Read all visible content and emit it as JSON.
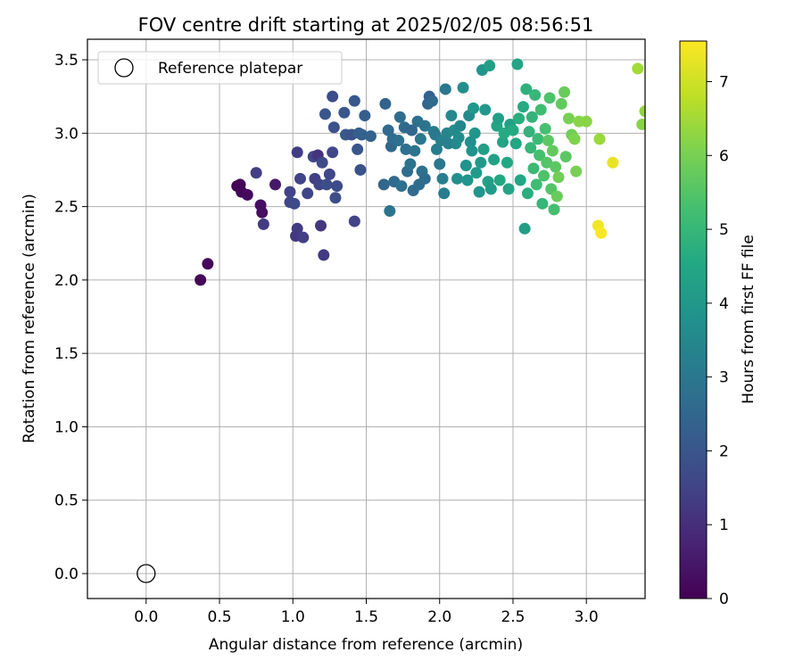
{
  "chart_data": {
    "type": "scatter",
    "title": "FOV centre drift starting at 2025/02/05 08:56:51",
    "xlabel": "Angular distance from reference (arcmin)",
    "ylabel": "Rotation from reference (arcmin)",
    "xlim": [
      -0.4,
      3.4
    ],
    "ylim": [
      -0.17,
      3.64
    ],
    "xticks": [
      0.0,
      0.5,
      1.0,
      1.5,
      2.0,
      2.5,
      3.0
    ],
    "xtick_labels": [
      "0.0",
      "0.5",
      "1.0",
      "1.5",
      "2.0",
      "2.5",
      "3.0"
    ],
    "yticks": [
      0.0,
      0.5,
      1.0,
      1.5,
      2.0,
      2.5,
      3.0,
      3.5
    ],
    "ytick_labels": [
      "0.0",
      "0.5",
      "1.0",
      "1.5",
      "2.0",
      "2.5",
      "3.0",
      "3.5"
    ],
    "grid": true,
    "legend": {
      "placement": "top-left",
      "entries": [
        "Reference platepar"
      ]
    },
    "reference_point": {
      "x": 0.0,
      "y": 0.0,
      "label": "Reference platepar"
    },
    "colorbar": {
      "label": "Hours from first FF file",
      "colormap": "viridis",
      "range": [
        0,
        7.55
      ],
      "ticks": [
        0,
        1,
        2,
        3,
        4,
        5,
        6,
        7
      ],
      "tick_labels": [
        "0",
        "1",
        "2",
        "3",
        "4",
        "5",
        "6",
        "7"
      ]
    },
    "points": [
      [
        0.37,
        2.0,
        0.1
      ],
      [
        0.42,
        2.11,
        0.15
      ],
      [
        0.62,
        2.64,
        0.05
      ],
      [
        0.64,
        2.65,
        0.08
      ],
      [
        0.65,
        2.6,
        0.12
      ],
      [
        0.69,
        2.58,
        0.2
      ],
      [
        0.78,
        2.51,
        0.25
      ],
      [
        0.79,
        2.46,
        0.3
      ],
      [
        0.8,
        2.38,
        1.3
      ],
      [
        0.75,
        2.73,
        1.4
      ],
      [
        0.88,
        2.65,
        0.5
      ],
      [
        0.98,
        2.6,
        1.5
      ],
      [
        0.98,
        2.53,
        1.6
      ],
      [
        1.01,
        2.52,
        1.7
      ],
      [
        1.02,
        2.3,
        1.2
      ],
      [
        1.03,
        2.35,
        1.3
      ],
      [
        1.07,
        2.29,
        1.4
      ],
      [
        1.03,
        2.87,
        1.35
      ],
      [
        1.05,
        2.69,
        1.5
      ],
      [
        1.1,
        2.59,
        1.55
      ],
      [
        1.14,
        2.84,
        1.6
      ],
      [
        1.15,
        2.69,
        1.4
      ],
      [
        1.17,
        2.85,
        1.1
      ],
      [
        1.18,
        2.65,
        1.55
      ],
      [
        1.19,
        2.37,
        1.2
      ],
      [
        1.2,
        2.8,
        1.7
      ],
      [
        1.21,
        2.17,
        1.25
      ],
      [
        1.22,
        3.13,
        2.0
      ],
      [
        1.23,
        2.65,
        1.8
      ],
      [
        1.25,
        2.72,
        1.6
      ],
      [
        1.27,
        3.25,
        1.8
      ],
      [
        1.27,
        2.87,
        1.6
      ],
      [
        1.28,
        3.04,
        1.9
      ],
      [
        1.29,
        2.56,
        1.75
      ],
      [
        1.3,
        2.64,
        1.7
      ],
      [
        1.35,
        3.14,
        2.0
      ],
      [
        1.36,
        2.99,
        2.1
      ],
      [
        1.4,
        2.99,
        1.95
      ],
      [
        1.42,
        3.22,
        2.05
      ],
      [
        1.42,
        2.4,
        1.5
      ],
      [
        1.44,
        2.89,
        2.0
      ],
      [
        1.45,
        3.0,
        2.2
      ],
      [
        1.46,
        2.75,
        1.9
      ],
      [
        1.47,
        2.99,
        2.3
      ],
      [
        1.49,
        3.12,
        2.2
      ],
      [
        1.53,
        2.98,
        2.4
      ],
      [
        1.62,
        2.65,
        2.5
      ],
      [
        1.63,
        3.2,
        2.4
      ],
      [
        1.65,
        3.02,
        2.6
      ],
      [
        1.66,
        2.47,
        2.9
      ],
      [
        1.67,
        2.91,
        2.5
      ],
      [
        1.68,
        2.96,
        2.7
      ],
      [
        1.69,
        2.67,
        2.6
      ],
      [
        1.72,
        2.95,
        2.8
      ],
      [
        1.73,
        3.11,
        2.7
      ],
      [
        1.74,
        2.64,
        2.8
      ],
      [
        1.76,
        3.04,
        2.6
      ],
      [
        1.77,
        2.89,
        2.8
      ],
      [
        1.78,
        2.74,
        2.7
      ],
      [
        1.8,
        2.79,
        2.9
      ],
      [
        1.81,
        3.02,
        2.5
      ],
      [
        1.82,
        2.61,
        2.6
      ],
      [
        1.83,
        2.88,
        2.9
      ],
      [
        1.85,
        3.08,
        2.8
      ],
      [
        1.86,
        2.65,
        2.7
      ],
      [
        1.87,
        2.96,
        3.0
      ],
      [
        1.88,
        2.74,
        2.8
      ],
      [
        1.9,
        2.69,
        2.7
      ],
      [
        1.9,
        3.05,
        2.9
      ],
      [
        1.92,
        3.2,
        2.5
      ],
      [
        1.93,
        3.25,
        2.4
      ],
      [
        1.95,
        3.22,
        2.6
      ],
      [
        1.96,
        3.01,
        3.2
      ],
      [
        1.97,
        2.99,
        3.0
      ],
      [
        1.98,
        2.89,
        3.1
      ],
      [
        2.0,
        2.79,
        3.0
      ],
      [
        2.01,
        2.95,
        3.3
      ],
      [
        2.02,
        2.69,
        3.2
      ],
      [
        2.03,
        2.59,
        3.1
      ],
      [
        2.04,
        3.3,
        3.0
      ],
      [
        2.05,
        3.0,
        3.4
      ],
      [
        2.06,
        2.93,
        3.3
      ],
      [
        2.08,
        3.12,
        3.5
      ],
      [
        2.1,
        3.02,
        3.6
      ],
      [
        2.11,
        2.93,
        3.5
      ],
      [
        2.12,
        2.69,
        3.7
      ],
      [
        2.13,
        2.97,
        3.6
      ],
      [
        2.14,
        3.05,
        3.4
      ],
      [
        2.16,
        3.31,
        3.7
      ],
      [
        2.18,
        2.78,
        3.8
      ],
      [
        2.19,
        2.68,
        3.9
      ],
      [
        2.2,
        3.12,
        3.6
      ],
      [
        2.21,
        2.94,
        3.7
      ],
      [
        2.22,
        2.88,
        3.8
      ],
      [
        2.23,
        3.17,
        4.0
      ],
      [
        2.24,
        3.0,
        3.9
      ],
      [
        2.25,
        2.73,
        4.1
      ],
      [
        2.27,
        2.6,
        3.9
      ],
      [
        2.28,
        2.8,
        4.0
      ],
      [
        2.29,
        3.43,
        3.9
      ],
      [
        2.3,
        2.89,
        4.2
      ],
      [
        2.31,
        3.16,
        4.0
      ],
      [
        2.33,
        2.67,
        4.3
      ],
      [
        2.34,
        3.46,
        4.2
      ],
      [
        2.35,
        2.62,
        4.1
      ],
      [
        2.37,
        2.82,
        4.3
      ],
      [
        2.39,
        3.05,
        4.4
      ],
      [
        2.4,
        3.1,
        4.2
      ],
      [
        2.41,
        2.68,
        4.5
      ],
      [
        2.43,
        2.94,
        4.4
      ],
      [
        2.44,
        3.0,
        4.6
      ],
      [
        2.46,
        2.8,
        4.5
      ],
      [
        2.47,
        2.62,
        4.4
      ],
      [
        2.48,
        3.06,
        4.3
      ],
      [
        2.5,
        3.02,
        4.6
      ],
      [
        2.52,
        2.93,
        4.5
      ],
      [
        2.53,
        3.47,
        4.4
      ],
      [
        2.54,
        3.1,
        4.7
      ],
      [
        2.55,
        2.68,
        4.5
      ],
      [
        2.57,
        3.18,
        4.6
      ],
      [
        2.58,
        2.35,
        4.2
      ],
      [
        2.59,
        3.3,
        4.8
      ],
      [
        2.6,
        2.59,
        4.7
      ],
      [
        2.61,
        3.01,
        4.9
      ],
      [
        2.62,
        2.9,
        5.0
      ],
      [
        2.63,
        3.11,
        4.9
      ],
      [
        2.64,
        2.76,
        5.1
      ],
      [
        2.65,
        3.26,
        5.0
      ],
      [
        2.66,
        2.65,
        5.2
      ],
      [
        2.67,
        2.96,
        5.1
      ],
      [
        2.68,
        2.85,
        5.3
      ],
      [
        2.69,
        3.16,
        5.2
      ],
      [
        2.7,
        2.52,
        5.0
      ],
      [
        2.71,
        2.71,
        5.4
      ],
      [
        2.72,
        3.03,
        5.3
      ],
      [
        2.73,
        2.8,
        5.5
      ],
      [
        2.74,
        2.95,
        5.6
      ],
      [
        2.75,
        3.24,
        5.4
      ],
      [
        2.76,
        2.62,
        5.5
      ],
      [
        2.77,
        2.88,
        5.7
      ],
      [
        2.78,
        2.48,
        5.3
      ],
      [
        2.79,
        2.77,
        5.6
      ],
      [
        2.8,
        2.57,
        5.8
      ],
      [
        2.81,
        2.7,
        5.9
      ],
      [
        2.83,
        3.2,
        5.7
      ],
      [
        2.85,
        3.28,
        5.8
      ],
      [
        2.86,
        2.84,
        5.6
      ],
      [
        2.88,
        3.1,
        6.0
      ],
      [
        2.9,
        2.99,
        5.9
      ],
      [
        2.92,
        2.96,
        6.1
      ],
      [
        2.93,
        2.74,
        6.0
      ],
      [
        2.95,
        3.08,
        6.2
      ],
      [
        3.0,
        3.08,
        6.2
      ],
      [
        3.08,
        2.37,
        7.4
      ],
      [
        3.1,
        2.32,
        7.5
      ],
      [
        3.09,
        2.96,
        6.4
      ],
      [
        3.18,
        2.8,
        7.3
      ],
      [
        3.35,
        3.44,
        6.5
      ],
      [
        3.38,
        3.06,
        6.2
      ],
      [
        3.4,
        3.15,
        6.3
      ]
    ]
  }
}
